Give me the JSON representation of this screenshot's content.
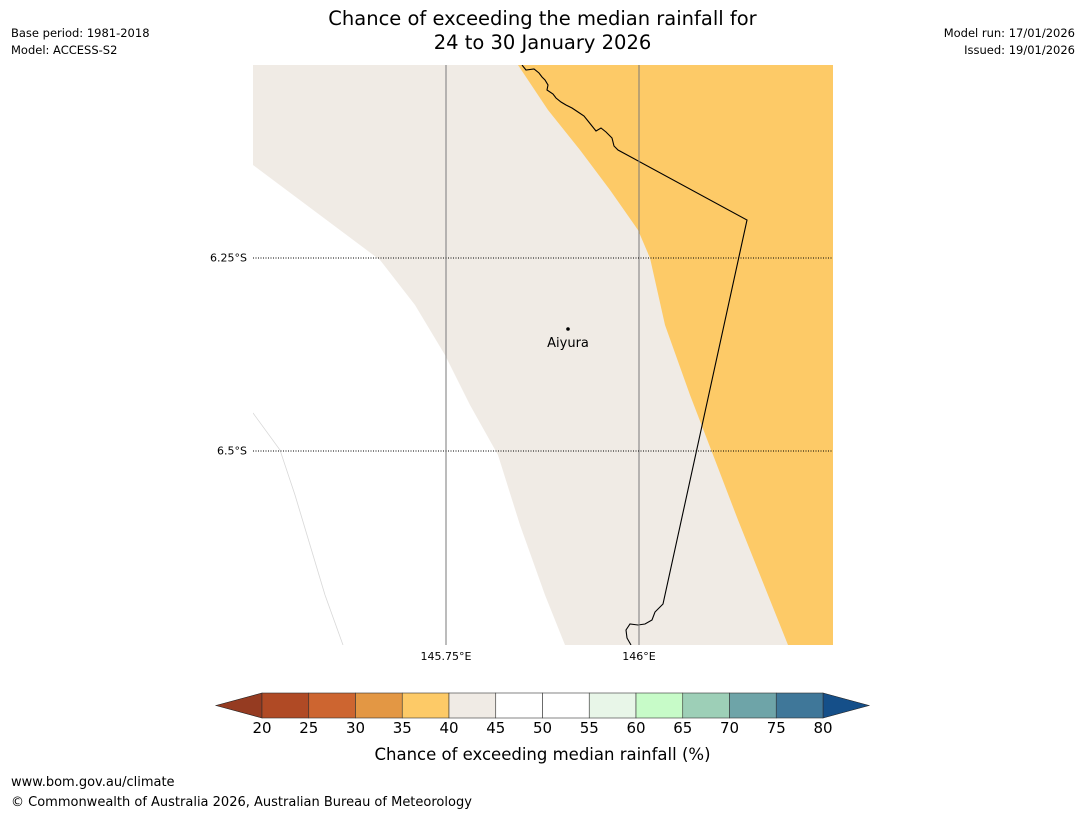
{
  "title": {
    "line1": "Chance of exceeding the median rainfall for",
    "line2": "24 to 30 January 2026"
  },
  "meta_left": {
    "base_period": "Base period: 1981-2018",
    "model": "Model: ACCESS-S2"
  },
  "meta_right": {
    "model_run": "Model run: 17/01/2026",
    "issued": "Issued: 19/01/2026"
  },
  "map": {
    "lat_labels": [
      "6.25°S",
      "6.5°S"
    ],
    "lon_labels": [
      "145.75°E",
      "146°E"
    ],
    "place": "Aiyura",
    "colors": {
      "band_35_40": "#fdca67",
      "band_40_45": "#f0ebe5",
      "band_45_55": "#ffffff"
    }
  },
  "colorbar": {
    "ticks": [
      "20",
      "25",
      "30",
      "35",
      "40",
      "45",
      "50",
      "55",
      "60",
      "65",
      "70",
      "75",
      "80"
    ],
    "colors": [
      "#b04a25",
      "#cd6530",
      "#e39744",
      "#fdca67",
      "#f0ebe5",
      "#ffffff",
      "#ffffff",
      "#e8f6e8",
      "#c7fbc8",
      "#9dcfb7",
      "#6ea4a8",
      "#3f7799"
    ],
    "under_color": "#953b21",
    "over_color": "#154f89",
    "label": "Chance of exceeding median rainfall (%)"
  },
  "footer": {
    "url": "www.bom.gov.au/climate",
    "copyright": "© Commonwealth of Australia 2026, Australian Bureau of Meteorology"
  }
}
